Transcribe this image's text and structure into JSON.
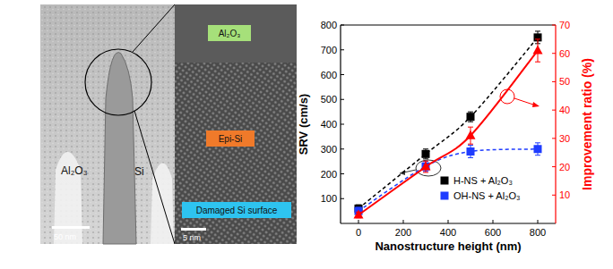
{
  "chart_data": {
    "type": "line",
    "x_label": "Nanostructure height (nm)",
    "y_label": "SRV (cm/s)",
    "y2_label": "Improvement ratio (%)",
    "x": [
      0,
      300,
      500,
      800
    ],
    "xlim": [
      -80,
      880
    ],
    "xticks": [
      0,
      200,
      400,
      600,
      800
    ],
    "ylim": [
      0,
      800
    ],
    "yticks": [
      100,
      200,
      300,
      400,
      500,
      600,
      700,
      800
    ],
    "y2lim": [
      0,
      70
    ],
    "y2ticks": [
      10,
      20,
      30,
      40,
      50,
      60,
      70
    ],
    "grid": false,
    "legend": "lower right",
    "series": [
      {
        "name": "H-NS + Al₂O₃",
        "color": "#000000",
        "marker": "square",
        "line_style": "dashed",
        "values": [
          60,
          280,
          430,
          750
        ],
        "errors": [
          15,
          20,
          20,
          25
        ]
      },
      {
        "name": "OH-NS + Al₂O₃",
        "color": "#1f3cff",
        "marker": "square",
        "line_style": "dashed",
        "values": [
          50,
          230,
          290,
          300
        ],
        "errors": [
          15,
          20,
          25,
          25
        ]
      },
      {
        "name": "Improvement ratio",
        "color": "#ff0000",
        "marker": "triangle",
        "line_style": "solid",
        "axis": "y2",
        "values": [
          3,
          20,
          31,
          61
        ],
        "errors": [
          1,
          2,
          3,
          4
        ]
      }
    ]
  },
  "tem_panels": [
    {
      "labels": [
        "Al₂O₃",
        "Si"
      ],
      "scale_bar": "50 nm"
    },
    {
      "labels": [
        "Al₂O₃",
        "Epi-Si",
        "Damaged Si surface"
      ],
      "scale_bar": "5 nm"
    }
  ]
}
